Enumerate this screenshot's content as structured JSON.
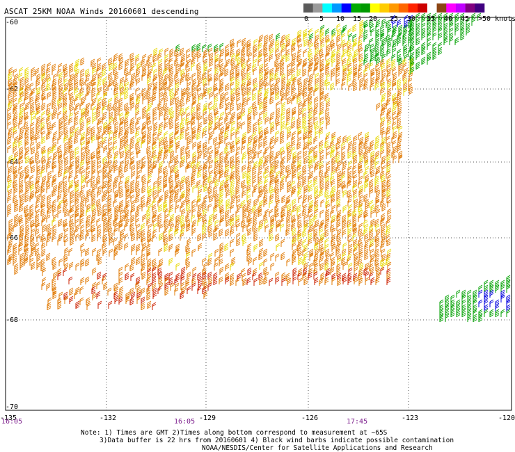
{
  "title": "ASCAT 25KM NOAA Winds 20160601 descending",
  "legend": {
    "labels": [
      "0",
      "5",
      "10",
      "15",
      "20",
      "25",
      "30",
      "35",
      "40",
      "45",
      ">50 knots"
    ],
    "colors": [
      "#5a5a5a",
      "#9a9a9a",
      "#00ffff",
      "#0099ff",
      "#0000ff",
      "#00aa00",
      "#009900",
      "#ffff00",
      "#ffcc00",
      "#ff9900",
      "#ff6600",
      "#ff2200",
      "#cc0000",
      "#ffffff",
      "#8b4513",
      "#ff00ff",
      "#c000ff",
      "#800080",
      "#400080"
    ]
  },
  "lat_labels": [
    "-60",
    "-62",
    "-64",
    "-66",
    "-68",
    "-70"
  ],
  "lon_labels": [
    "-135",
    "-132",
    "-129",
    "-126",
    "-123",
    "-120"
  ],
  "time_labels": [
    "16:05",
    "16:05",
    "17:45"
  ],
  "notes": [
    "Note: 1) Times are GMT 2)Times along bottom correspond to measurement at ~65S",
    "3)Data buffer is 22 hrs from 20160601 4) Black wind barbs indicate possible contamination",
    "NOAA/NESDIS/Center for Satellite Applications and Research"
  ],
  "colors": {
    "barb_green": "#00a000",
    "barb_blue": "#0000dd",
    "barb_yellow": "#e8d800",
    "barb_orange": "#e07800",
    "barb_red": "#cc2000",
    "grid": "#555555",
    "time_label": "#7a1a8a"
  }
}
